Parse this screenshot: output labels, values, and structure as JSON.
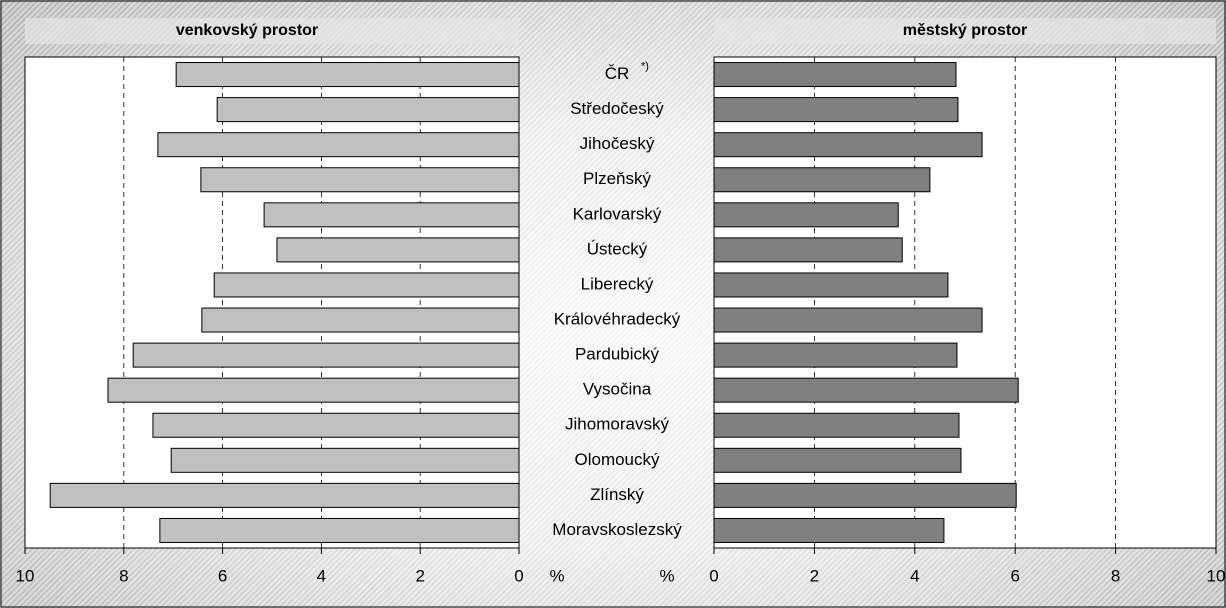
{
  "chart_data": [
    {
      "type": "hbar",
      "title": "venkovský prostor",
      "xlabel": "%",
      "categories": [
        "ČR",
        "Středočeský",
        "Jihočeský",
        "Plzeňský",
        "Karlovarský",
        "Ústecký",
        "Liberecký",
        "Královéhradecký",
        "Pardubický",
        "Vysočina",
        "Jihomoravský",
        "Olomoucký",
        "Zlínský",
        "Moravskoslezský"
      ],
      "category_note": "*)",
      "values": [
        6.94,
        6.11,
        7.31,
        6.44,
        5.16,
        4.9,
        6.17,
        6.42,
        7.81,
        8.32,
        7.41,
        7.04,
        9.49,
        7.27
      ],
      "color": "#c0c0c0",
      "xlim": [
        10,
        0
      ],
      "xticks": [
        10,
        8,
        6,
        4,
        2,
        0
      ],
      "grid": true
    },
    {
      "type": "hbar",
      "title": "městský prostor",
      "xlabel": "%",
      "values": [
        4.82,
        4.86,
        5.34,
        4.3,
        3.67,
        3.75,
        4.66,
        5.34,
        4.84,
        6.06,
        4.88,
        4.92,
        6.02,
        4.58
      ],
      "color": "#808080",
      "xlim": [
        0,
        10
      ],
      "xticks": [
        0,
        2,
        4,
        6,
        8,
        10
      ],
      "grid": true
    }
  ]
}
